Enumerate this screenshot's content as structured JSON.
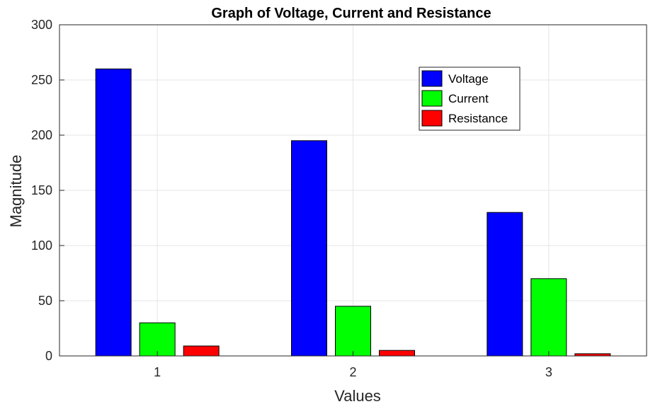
{
  "chart_data": {
    "type": "bar",
    "title": "Graph of Voltage, Current and Resistance",
    "xlabel": "Values",
    "ylabel": "Magnitude",
    "categories": [
      "1",
      "2",
      "3"
    ],
    "ylim": [
      0,
      300
    ],
    "yticks": [
      0,
      50,
      100,
      150,
      200,
      250,
      300
    ],
    "grid": true,
    "legend_position": "top-right",
    "series": [
      {
        "name": "Voltage",
        "color": "#0000ff",
        "values": [
          260,
          195,
          130
        ]
      },
      {
        "name": "Current",
        "color": "#00ff00",
        "values": [
          30,
          45,
          70
        ]
      },
      {
        "name": "Resistance",
        "color": "#ff0000",
        "values": [
          9,
          5,
          2
        ]
      }
    ]
  }
}
